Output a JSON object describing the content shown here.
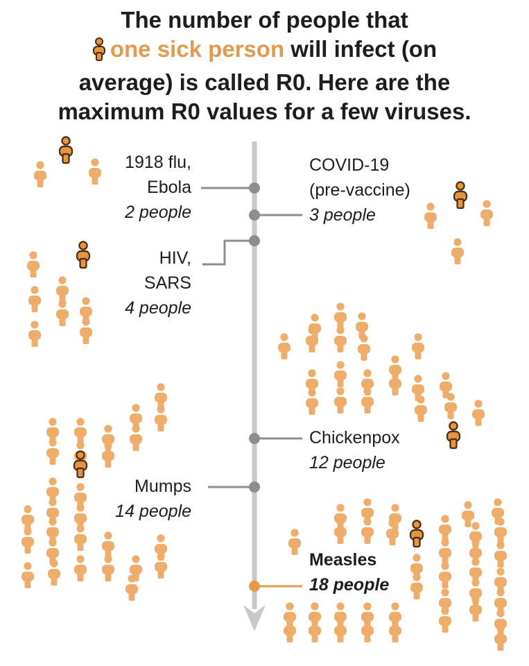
{
  "title": {
    "line1": "The number of people that",
    "highlight": "one sick person",
    "line2_rest": "will infect (on",
    "line3": "average) is called R0. Here are the",
    "line4": "maximum R0 values for a few viruses."
  },
  "colors": {
    "person_fill": "#eead6b",
    "person_fill_source": "#e3953f",
    "person_outline": "#4a2a10",
    "axis": "#c8c8c8",
    "marker": "#8d8d8d",
    "measles_accent": "#e59a4b",
    "title_highlight": "#e29a4f"
  },
  "icons": {
    "person": "person-icon",
    "source_person": "sick-person-icon",
    "arrow": "arrow-down-icon"
  },
  "viruses": [
    {
      "name": "1918 flu,",
      "name2": "Ebola",
      "count": "2 people",
      "r0": 2,
      "side": "left"
    },
    {
      "name": "COVID-19",
      "name2": "(pre-vaccine)",
      "count": "3 people",
      "r0": 3,
      "side": "right"
    },
    {
      "name": "HIV,",
      "name2": "SARS",
      "count": "4 people",
      "r0": 4,
      "side": "left"
    },
    {
      "name": "Chickenpox",
      "name2": "",
      "count": "12 people",
      "r0": 12,
      "side": "right"
    },
    {
      "name": "Mumps",
      "name2": "",
      "count": "14 people",
      "r0": 14,
      "side": "left"
    },
    {
      "name": "Measles",
      "name2": "",
      "count": "18 people",
      "r0": 18,
      "side": "right",
      "emphasis": true
    }
  ]
}
